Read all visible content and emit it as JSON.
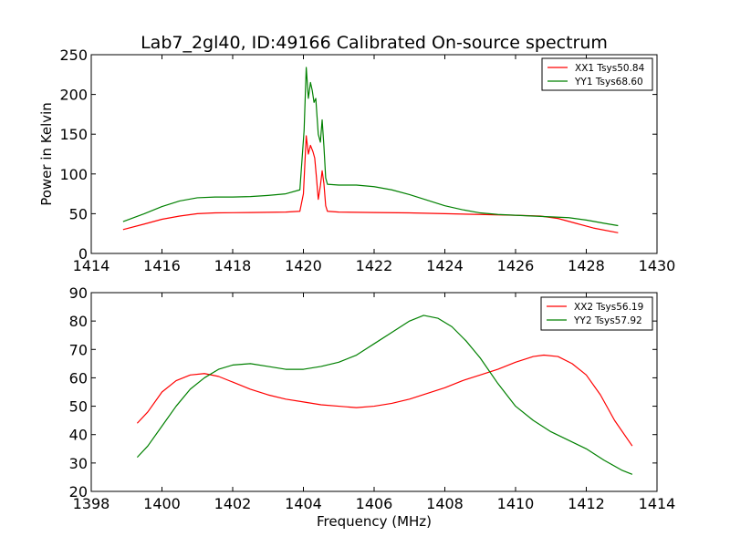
{
  "title": "Lab7_2gl40, ID:49166 Calibrated On-source spectrum",
  "colors": {
    "xx": "#ff0000",
    "yy": "#008000"
  },
  "chart_data": [
    {
      "type": "line",
      "title": "Lab7_2gl40, ID:49166 Calibrated On-source spectrum",
      "xlabel": "",
      "ylabel": "Power in Kelvin",
      "xlim": [
        1414,
        1430
      ],
      "ylim": [
        0,
        250
      ],
      "xticks": [
        "1414",
        "1416",
        "1418",
        "1420",
        "1422",
        "1424",
        "1426",
        "1428",
        "1430"
      ],
      "yticks": [
        "0",
        "50",
        "100",
        "150",
        "200",
        "250"
      ],
      "legend_position": "top-right",
      "grid": false,
      "series": [
        {
          "name": "XX1 Tsys50.84",
          "color": "#ff0000",
          "points": [
            [
              1414.9,
              30
            ],
            [
              1415.5,
              37
            ],
            [
              1416.0,
              43
            ],
            [
              1416.5,
              47
            ],
            [
              1417.0,
              50
            ],
            [
              1417.5,
              51
            ],
            [
              1418.5,
              51.5
            ],
            [
              1419.5,
              52
            ],
            [
              1419.9,
              53
            ],
            [
              1420.0,
              75
            ],
            [
              1420.08,
              148
            ],
            [
              1420.14,
              125
            ],
            [
              1420.2,
              136
            ],
            [
              1420.27,
              128
            ],
            [
              1420.32,
              120
            ],
            [
              1420.37,
              95
            ],
            [
              1420.42,
              68
            ],
            [
              1420.48,
              85
            ],
            [
              1420.53,
              104
            ],
            [
              1420.58,
              88
            ],
            [
              1420.63,
              60
            ],
            [
              1420.68,
              53
            ],
            [
              1421.0,
              52
            ],
            [
              1422.0,
              51.5
            ],
            [
              1423.0,
              51
            ],
            [
              1424.0,
              50
            ],
            [
              1425.0,
              49
            ],
            [
              1426.0,
              48
            ],
            [
              1426.7,
              47
            ],
            [
              1427.2,
              44
            ],
            [
              1427.7,
              38
            ],
            [
              1428.2,
              32
            ],
            [
              1428.9,
              26
            ]
          ]
        },
        {
          "name": "YY1 Tsys68.60",
          "color": "#008000",
          "points": [
            [
              1414.9,
              40
            ],
            [
              1415.5,
              50
            ],
            [
              1416.0,
              59
            ],
            [
              1416.5,
              66
            ],
            [
              1417.0,
              70
            ],
            [
              1417.5,
              71
            ],
            [
              1418.0,
              71
            ],
            [
              1418.5,
              71.5
            ],
            [
              1419.0,
              73
            ],
            [
              1419.5,
              75
            ],
            [
              1419.9,
              80
            ],
            [
              1420.02,
              155
            ],
            [
              1420.08,
              234
            ],
            [
              1420.14,
              195
            ],
            [
              1420.2,
              215
            ],
            [
              1420.25,
              205
            ],
            [
              1420.3,
              190
            ],
            [
              1420.35,
              195
            ],
            [
              1420.42,
              150
            ],
            [
              1420.48,
              140
            ],
            [
              1420.53,
              168
            ],
            [
              1420.58,
              135
            ],
            [
              1420.63,
              95
            ],
            [
              1420.68,
              87
            ],
            [
              1421.0,
              86
            ],
            [
              1421.5,
              86
            ],
            [
              1422.0,
              84
            ],
            [
              1422.5,
              80
            ],
            [
              1423.0,
              74
            ],
            [
              1423.5,
              67
            ],
            [
              1424.0,
              60
            ],
            [
              1424.5,
              55
            ],
            [
              1425.0,
              51
            ],
            [
              1425.5,
              49
            ],
            [
              1426.0,
              48
            ],
            [
              1426.5,
              47
            ],
            [
              1427.0,
              46
            ],
            [
              1427.5,
              45
            ],
            [
              1428.0,
              42
            ],
            [
              1428.5,
              38
            ],
            [
              1428.9,
              35
            ]
          ]
        }
      ]
    },
    {
      "type": "line",
      "title": "",
      "xlabel": "Frequency (MHz)",
      "ylabel": "",
      "xlim": [
        1398,
        1414
      ],
      "ylim": [
        20,
        90
      ],
      "xticks": [
        "1398",
        "1400",
        "1402",
        "1404",
        "1406",
        "1408",
        "1410",
        "1412",
        "1414"
      ],
      "yticks": [
        "20",
        "30",
        "40",
        "50",
        "60",
        "70",
        "80",
        "90"
      ],
      "legend_position": "top-right",
      "grid": false,
      "series": [
        {
          "name": "XX2 Tsys56.19",
          "color": "#ff0000",
          "points": [
            [
              1399.3,
              44
            ],
            [
              1399.6,
              48
            ],
            [
              1400.0,
              55
            ],
            [
              1400.4,
              59
            ],
            [
              1400.8,
              61
            ],
            [
              1401.2,
              61.5
            ],
            [
              1401.6,
              60.5
            ],
            [
              1402.0,
              58.5
            ],
            [
              1402.5,
              56
            ],
            [
              1403.0,
              54
            ],
            [
              1403.5,
              52.5
            ],
            [
              1404.0,
              51.5
            ],
            [
              1404.5,
              50.5
            ],
            [
              1405.0,
              50
            ],
            [
              1405.5,
              49.5
            ],
            [
              1406.0,
              50
            ],
            [
              1406.5,
              51
            ],
            [
              1407.0,
              52.5
            ],
            [
              1407.5,
              54.5
            ],
            [
              1408.0,
              56.5
            ],
            [
              1408.5,
              59
            ],
            [
              1409.0,
              61
            ],
            [
              1409.5,
              63
            ],
            [
              1410.0,
              65.5
            ],
            [
              1410.5,
              67.5
            ],
            [
              1410.8,
              68
            ],
            [
              1411.2,
              67.5
            ],
            [
              1411.6,
              65
            ],
            [
              1412.0,
              61
            ],
            [
              1412.4,
              54
            ],
            [
              1412.8,
              45
            ],
            [
              1413.3,
              36
            ]
          ]
        },
        {
          "name": "YY2 Tsys57.92",
          "color": "#008000",
          "points": [
            [
              1399.3,
              32
            ],
            [
              1399.6,
              36
            ],
            [
              1400.0,
              43
            ],
            [
              1400.4,
              50
            ],
            [
              1400.8,
              56
            ],
            [
              1401.2,
              60
            ],
            [
              1401.6,
              63
            ],
            [
              1402.0,
              64.5
            ],
            [
              1402.5,
              65
            ],
            [
              1403.0,
              64
            ],
            [
              1403.5,
              63
            ],
            [
              1404.0,
              63
            ],
            [
              1404.5,
              64
            ],
            [
              1405.0,
              65.5
            ],
            [
              1405.5,
              68
            ],
            [
              1406.0,
              72
            ],
            [
              1406.5,
              76
            ],
            [
              1407.0,
              80
            ],
            [
              1407.4,
              82
            ],
            [
              1407.8,
              81
            ],
            [
              1408.2,
              78
            ],
            [
              1408.6,
              73
            ],
            [
              1409.0,
              67
            ],
            [
              1409.5,
              58
            ],
            [
              1410.0,
              50
            ],
            [
              1410.5,
              45
            ],
            [
              1411.0,
              41
            ],
            [
              1411.5,
              38
            ],
            [
              1412.0,
              35
            ],
            [
              1412.5,
              31
            ],
            [
              1413.0,
              27.5
            ],
            [
              1413.3,
              26
            ]
          ]
        }
      ]
    }
  ]
}
